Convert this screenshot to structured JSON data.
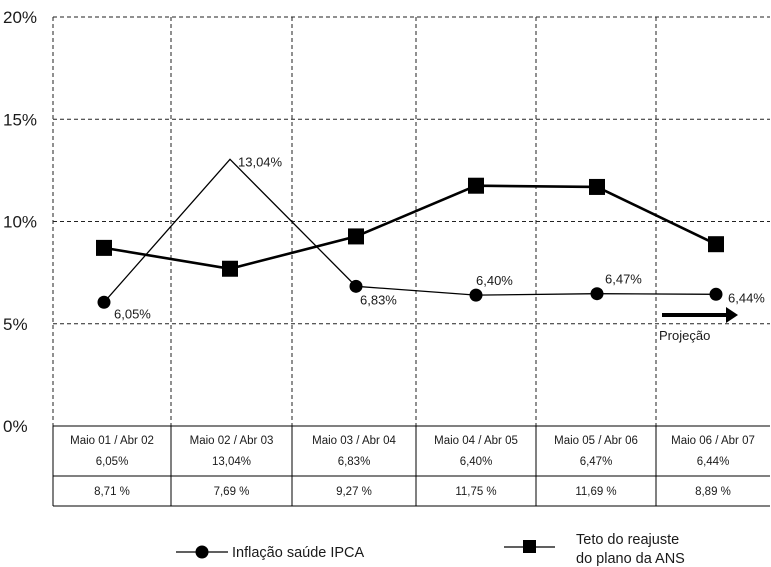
{
  "chart_data": {
    "type": "line",
    "title": "",
    "xlabel": "",
    "ylabel": "",
    "ylim": [
      0,
      20
    ],
    "y_ticks": [
      "0%",
      "5%",
      "10%",
      "15%",
      "20%"
    ],
    "grid": true,
    "categories": [
      "Maio 01 / Abr 02",
      "Maio 02 / Abr 03",
      "Maio 03 / Abr 04",
      "Maio 04 / Abr 05",
      "Maio 05 / Abr 06",
      "Maio 06 / Abr 07"
    ],
    "series": [
      {
        "name": "Inflação saúde IPCA",
        "marker": "circle",
        "values": [
          6.05,
          13.04,
          6.83,
          6.4,
          6.47,
          6.44
        ],
        "labels": [
          "6,05%",
          "13,04%",
          "6,83%",
          "6,40%",
          "6,47%",
          "6,44%"
        ]
      },
      {
        "name": "Teto do reajuste do plano da ANS",
        "marker": "square",
        "values": [
          8.71,
          7.69,
          9.27,
          11.75,
          11.69,
          8.89
        ]
      }
    ],
    "table": {
      "row1_top": [
        "Maio 01 / Abr 02",
        "Maio 02 / Abr 03",
        "Maio 03 / Abr 04",
        "Maio 04 / Abr 05",
        "Maio 05 / Abr 06",
        "Maio 06 / Abr 07"
      ],
      "row1_bottom": [
        "6,05%",
        "13,04%",
        "6,83%",
        "6,40%",
        "6,47%",
        "6,44%"
      ],
      "row2": [
        "8,71 %",
        "7,69 %",
        "9,27 %",
        "11,75 %",
        "11,69 %",
        "8,89 %"
      ]
    },
    "annotation": "Projeção",
    "legend": {
      "placement": "bottom",
      "item1": "Inflação saúde IPCA",
      "item2_line1": "Teto do reajuste",
      "item2_line2": "do plano da ANS"
    },
    "colors": {
      "line": "#000000",
      "grid": "#222222"
    }
  }
}
